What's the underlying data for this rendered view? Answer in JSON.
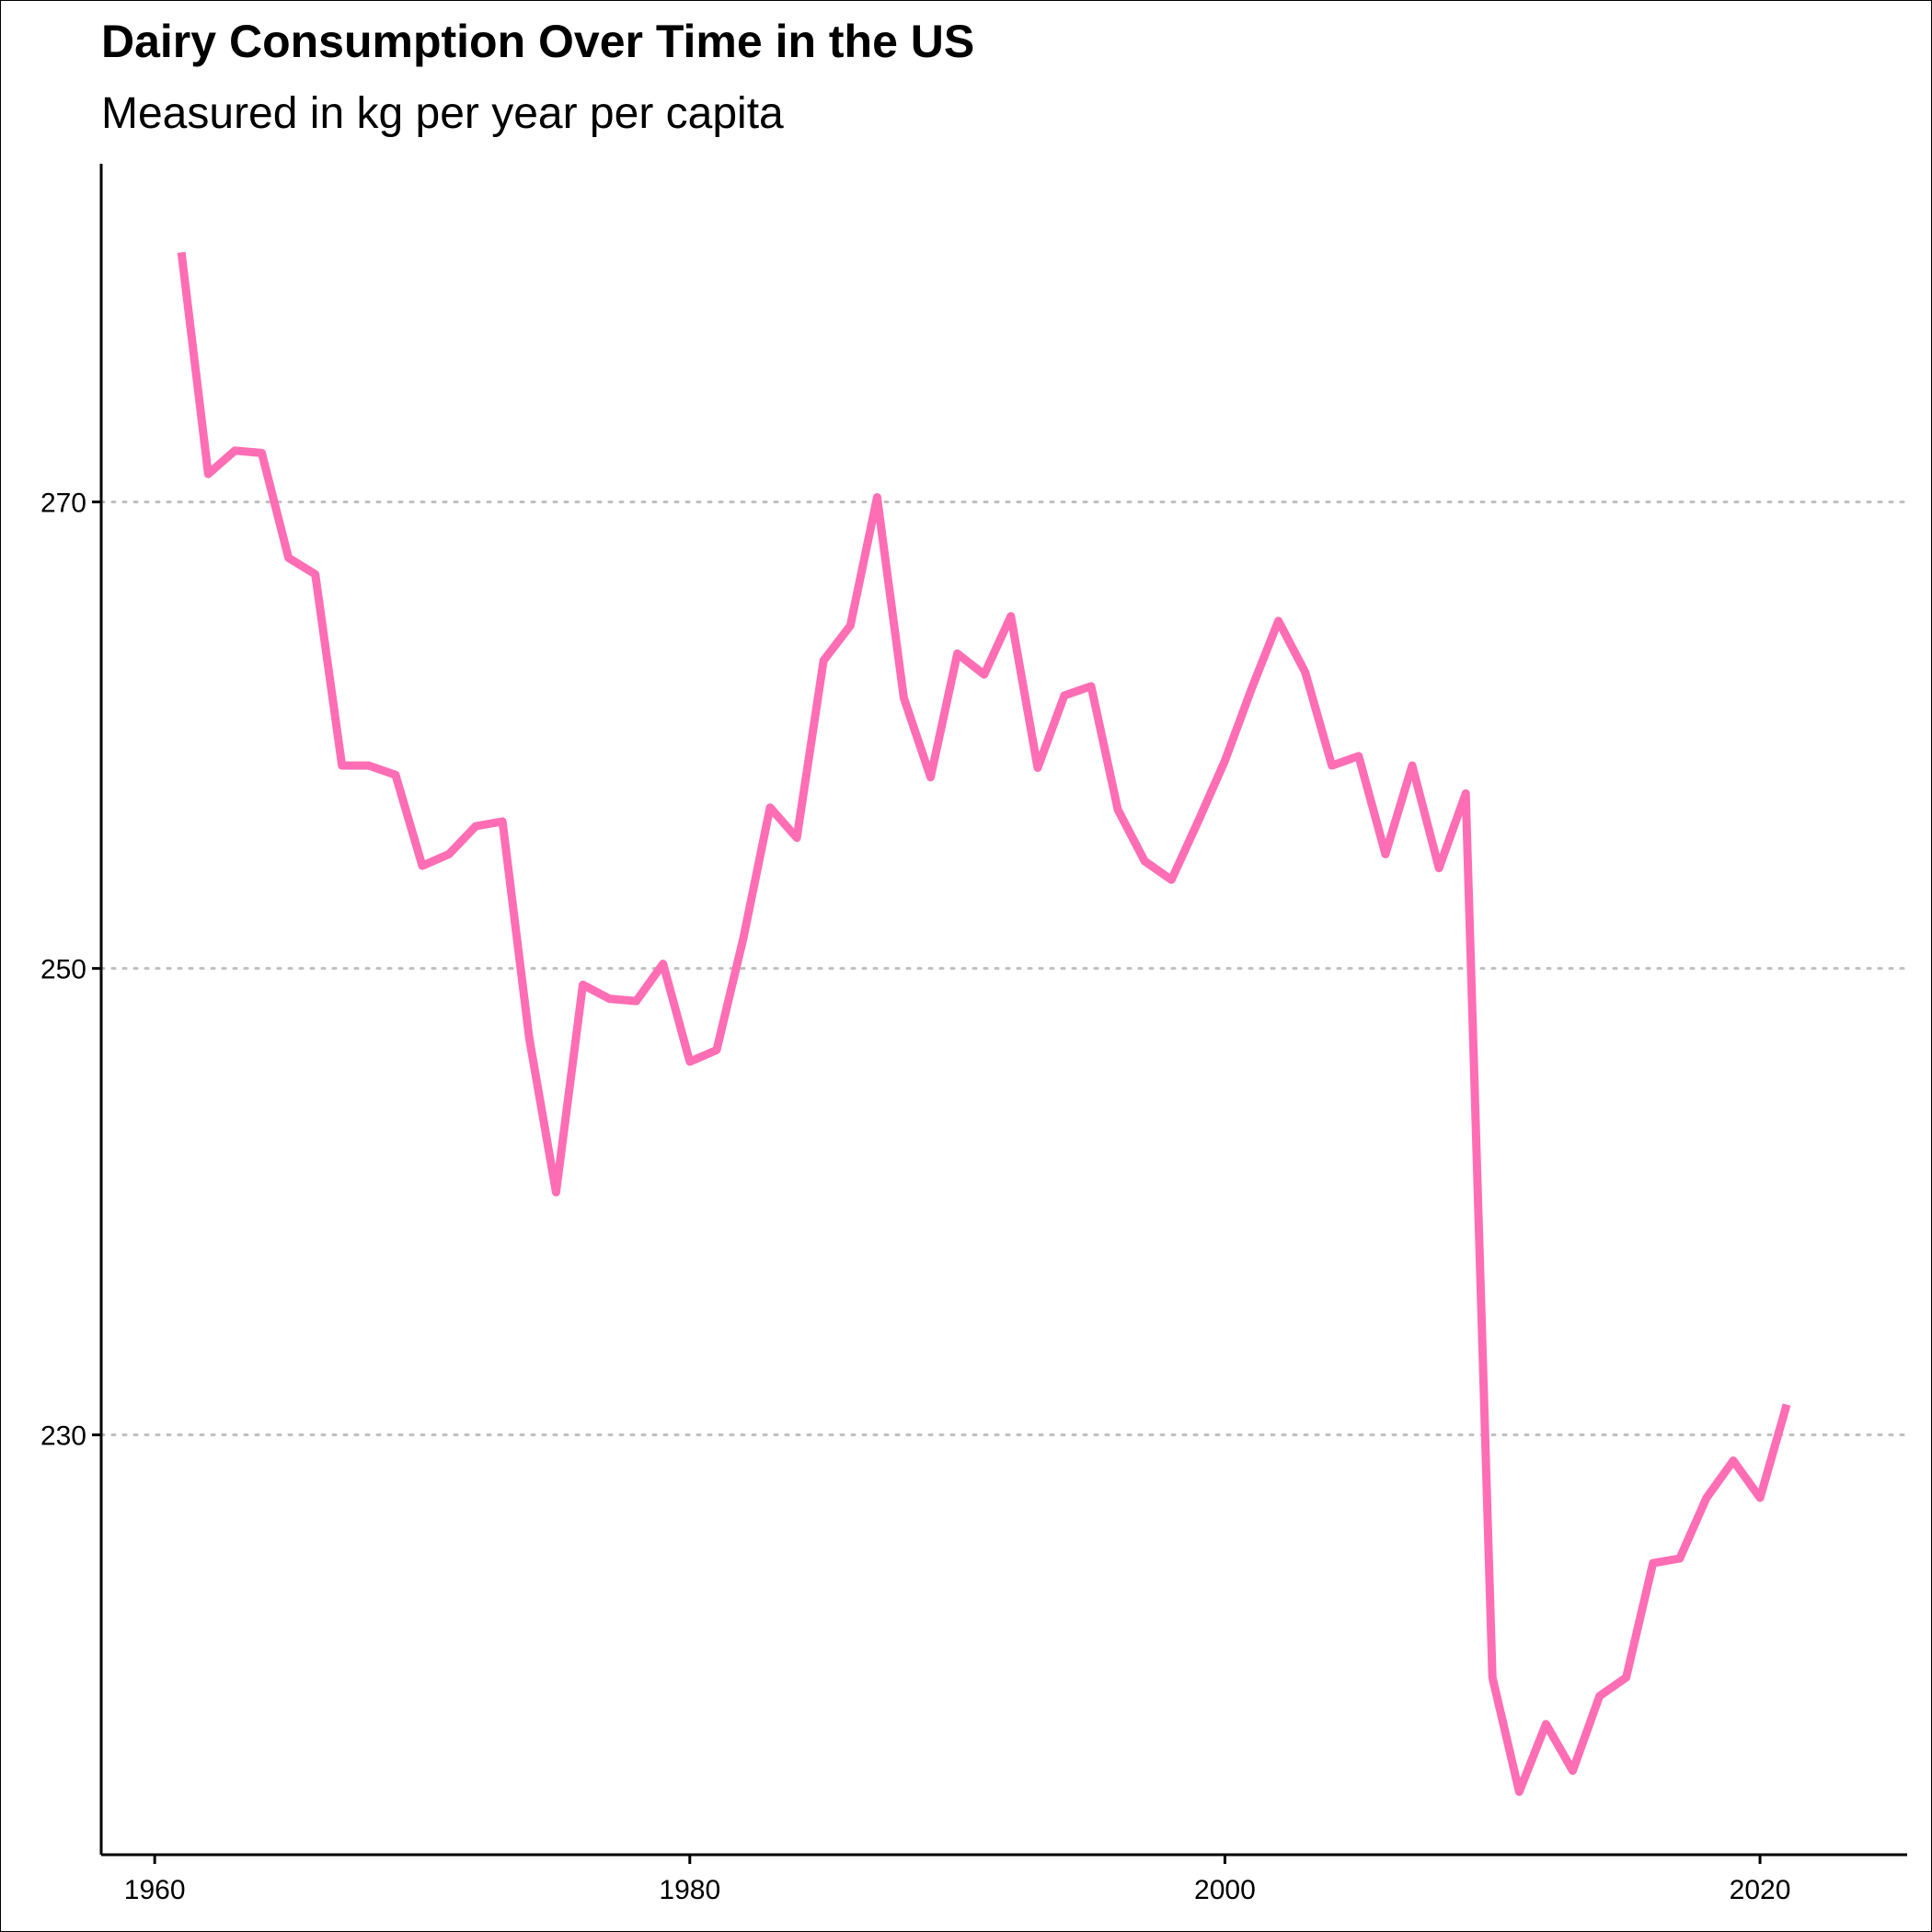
{
  "chart_data": {
    "type": "line",
    "title": "Dairy Consumption Over Time in the US",
    "subtitle": "Measured in kg per year per capita",
    "xlabel": "",
    "ylabel": "",
    "xlim": [
      1958,
      2025.5
    ],
    "ylim": [
      212,
      284.5
    ],
    "x_ticks": [
      1960,
      1980,
      2000,
      2020
    ],
    "y_ticks": [
      230,
      250,
      270
    ],
    "grid": {
      "x": false,
      "y": true,
      "style": "dotted"
    },
    "line_color": "#ff6eb4",
    "series": [
      {
        "x": [
          1961,
          1962,
          1963,
          1964,
          1965,
          1966,
          1967,
          1968,
          1969,
          1970,
          1971,
          1972,
          1973,
          1974,
          1975,
          1976,
          1977,
          1978,
          1979,
          1980,
          1981,
          1982,
          1983,
          1984,
          1985,
          1986,
          1987,
          1988,
          1989,
          1990,
          1991,
          1992,
          1993,
          1994,
          1995,
          1996,
          1997,
          1998,
          1999,
          2000,
          2001,
          2002,
          2003,
          2004,
          2005,
          2006,
          2007,
          2008,
          2009,
          2010,
          2011,
          2012,
          2013,
          2014,
          2015,
          2016,
          2017,
          2018,
          2019,
          2020,
          2021
        ],
        "values": [
          280.7,
          271.2,
          272.2,
          272.1,
          267.6,
          266.9,
          258.7,
          258.7,
          258.3,
          254.4,
          254.9,
          256.1,
          256.3,
          247.0,
          240.4,
          249.3,
          248.7,
          248.6,
          250.2,
          246.0,
          246.5,
          251.3,
          256.9,
          255.6,
          263.2,
          264.7,
          270.2,
          261.6,
          258.2,
          263.5,
          262.6,
          265.1,
          258.6,
          261.7,
          262.1,
          256.8,
          254.6,
          253.8,
          256.3,
          258.9,
          262.0,
          264.9,
          262.7,
          258.7,
          259.1,
          254.9,
          258.7,
          254.3,
          257.5,
          219.6,
          214.7,
          217.6,
          215.6,
          218.8,
          219.6,
          224.5,
          224.7,
          227.3,
          228.9,
          227.3,
          231.3
        ]
      }
    ]
  }
}
